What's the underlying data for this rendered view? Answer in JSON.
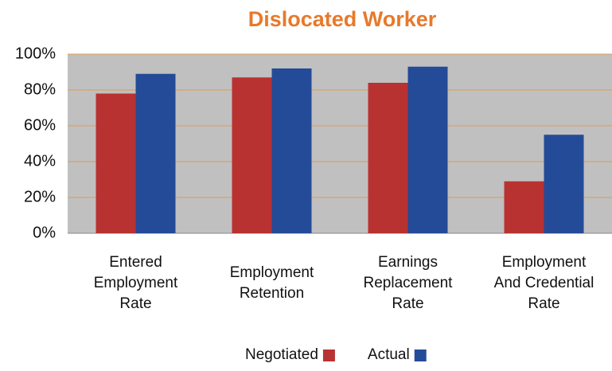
{
  "chart_data": {
    "type": "bar",
    "title": "Dislocated Worker",
    "categories": [
      "Entered\nEmployment\nRate",
      "Employment\nRetention",
      "Earnings\nReplacement\nRate",
      "Employment\nAnd Credential\nRate"
    ],
    "series": [
      {
        "name": "Negotiated",
        "color": "#b83232",
        "values": [
          78,
          87,
          84,
          29
        ]
      },
      {
        "name": "Actual",
        "color": "#244b97",
        "values": [
          89,
          92,
          93,
          55
        ]
      }
    ],
    "ylim": [
      0,
      100
    ],
    "yticks": [
      {
        "value": 0,
        "label": "0%"
      },
      {
        "value": 20,
        "label": "20%"
      },
      {
        "value": 40,
        "label": "40%"
      },
      {
        "value": 60,
        "label": "60%"
      },
      {
        "value": 80,
        "label": "80%"
      },
      {
        "value": 100,
        "label": "100%"
      }
    ],
    "grid": true,
    "legend": "bottom"
  }
}
